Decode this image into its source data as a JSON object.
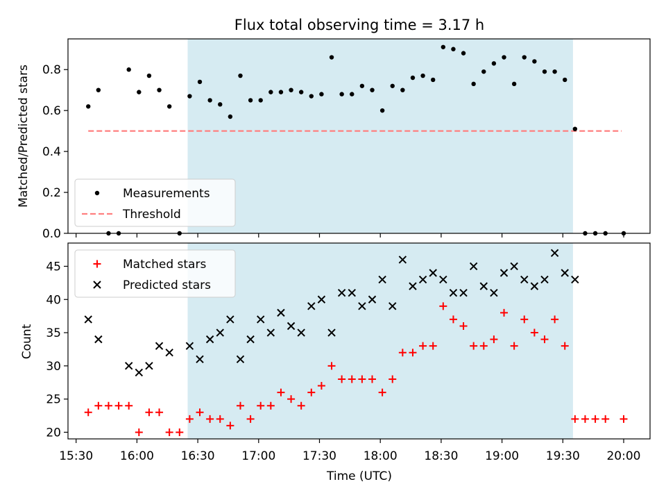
{
  "title": "Flux total observing time = 3.17 h",
  "xlabel": "Time (UTC)",
  "x_ticks": [
    "15:30",
    "16:00",
    "16:30",
    "17:00",
    "17:30",
    "18:00",
    "18:30",
    "19:00",
    "19:30",
    "20:00"
  ],
  "colors": {
    "window": "#add8e6",
    "measurement": "#000000",
    "threshold": "#ff7f7f",
    "matched": "#ff0000",
    "predicted": "#000000"
  },
  "chart_data": [
    {
      "type": "scatter",
      "ylabel": "Matched/Predicted stars",
      "xlim": [
        "15:26",
        "20:13"
      ],
      "ylim": [
        0,
        0.95
      ],
      "y_ticks": [
        "0.0",
        "0.2",
        "0.4",
        "0.6",
        "0.8"
      ],
      "observing_window": [
        "16:25",
        "19:35"
      ],
      "legend": {
        "placement": "lower-left",
        "entries": [
          "Measurements",
          "Threshold"
        ]
      },
      "threshold": {
        "value": 0.5,
        "x": [
          "15:36",
          "19:59"
        ]
      },
      "series": [
        {
          "name": "Measurements",
          "marker": "dot",
          "x": [
            "15:36",
            "15:41",
            "15:46",
            "15:51",
            "15:56",
            "16:01",
            "16:06",
            "16:11",
            "16:16",
            "16:21",
            "16:26",
            "16:31",
            "16:36",
            "16:41",
            "16:46",
            "16:51",
            "16:56",
            "17:01",
            "17:06",
            "17:11",
            "17:16",
            "17:21",
            "17:26",
            "17:31",
            "17:36",
            "17:41",
            "17:46",
            "17:51",
            "17:56",
            "18:01",
            "18:06",
            "18:11",
            "18:16",
            "18:21",
            "18:26",
            "18:31",
            "18:36",
            "18:41",
            "18:46",
            "18:51",
            "18:56",
            "19:01",
            "19:06",
            "19:11",
            "19:16",
            "19:21",
            "19:26",
            "19:31",
            "19:36",
            "19:41",
            "19:46",
            "19:51",
            "20:00"
          ],
          "y": [
            0.62,
            0.7,
            0.0,
            0.0,
            0.8,
            0.69,
            0.77,
            0.7,
            0.62,
            0.0,
            0.67,
            0.74,
            0.65,
            0.63,
            0.57,
            0.77,
            0.65,
            0.65,
            0.69,
            0.69,
            0.7,
            0.69,
            0.67,
            0.68,
            0.86,
            0.68,
            0.68,
            0.72,
            0.7,
            0.6,
            0.72,
            0.7,
            0.76,
            0.77,
            0.75,
            0.91,
            0.9,
            0.88,
            0.73,
            0.79,
            0.83,
            0.86,
            0.73,
            0.86,
            0.84,
            0.79,
            0.79,
            0.75,
            0.51,
            0.0,
            0.0,
            0.0,
            0.0
          ]
        }
      ]
    },
    {
      "type": "scatter",
      "ylabel": "Count",
      "xlabel": "Time (UTC)",
      "xlim": [
        "15:26",
        "20:13"
      ],
      "ylim": [
        19,
        48.5
      ],
      "y_ticks": [
        "20",
        "25",
        "30",
        "35",
        "40",
        "45"
      ],
      "observing_window": [
        "16:25",
        "19:35"
      ],
      "legend": {
        "placement": "upper-left",
        "entries": [
          "Matched stars",
          "Predicted stars"
        ]
      },
      "series": [
        {
          "name": "Matched stars",
          "marker": "plus",
          "x": [
            "15:36",
            "15:41",
            "15:46",
            "15:51",
            "15:56",
            "16:01",
            "16:06",
            "16:11",
            "16:16",
            "16:21",
            "16:26",
            "16:31",
            "16:36",
            "16:41",
            "16:46",
            "16:51",
            "16:56",
            "17:01",
            "17:06",
            "17:11",
            "17:16",
            "17:21",
            "17:26",
            "17:31",
            "17:36",
            "17:41",
            "17:46",
            "17:51",
            "17:56",
            "18:01",
            "18:06",
            "18:11",
            "18:16",
            "18:21",
            "18:26",
            "18:31",
            "18:36",
            "18:41",
            "18:46",
            "18:51",
            "18:56",
            "19:01",
            "19:06",
            "19:11",
            "19:16",
            "19:21",
            "19:26",
            "19:31",
            "19:36",
            "19:41",
            "19:46",
            "19:51",
            "20:00"
          ],
          "y": [
            23,
            24,
            24,
            24,
            24,
            20,
            23,
            23,
            20,
            20,
            22,
            23,
            22,
            22,
            21,
            24,
            22,
            24,
            24,
            26,
            25,
            24,
            26,
            27,
            30,
            28,
            28,
            28,
            28,
            26,
            28,
            32,
            32,
            33,
            33,
            39,
            37,
            36,
            33,
            33,
            34,
            38,
            33,
            37,
            35,
            34,
            37,
            33,
            22,
            22,
            22,
            22,
            22
          ]
        },
        {
          "name": "Predicted stars",
          "marker": "x",
          "x": [
            "15:36",
            "15:41",
            "15:56",
            "16:01",
            "16:06",
            "16:11",
            "16:16",
            "16:26",
            "16:31",
            "16:36",
            "16:41",
            "16:46",
            "16:51",
            "16:56",
            "17:01",
            "17:06",
            "17:11",
            "17:16",
            "17:21",
            "17:26",
            "17:31",
            "17:36",
            "17:41",
            "17:46",
            "17:51",
            "17:56",
            "18:01",
            "18:06",
            "18:11",
            "18:16",
            "18:21",
            "18:26",
            "18:31",
            "18:36",
            "18:41",
            "18:46",
            "18:51",
            "18:56",
            "19:01",
            "19:06",
            "19:11",
            "19:16",
            "19:21",
            "19:26",
            "19:31",
            "19:36"
          ],
          "y": [
            37,
            34,
            30,
            29,
            30,
            33,
            32,
            33,
            31,
            34,
            35,
            37,
            31,
            34,
            37,
            35,
            38,
            36,
            35,
            39,
            40,
            35,
            41,
            41,
            39,
            40,
            43,
            39,
            46,
            42,
            43,
            44,
            43,
            41,
            41,
            45,
            42,
            41,
            44,
            45,
            43,
            42,
            43,
            47,
            44,
            43
          ]
        }
      ]
    }
  ]
}
